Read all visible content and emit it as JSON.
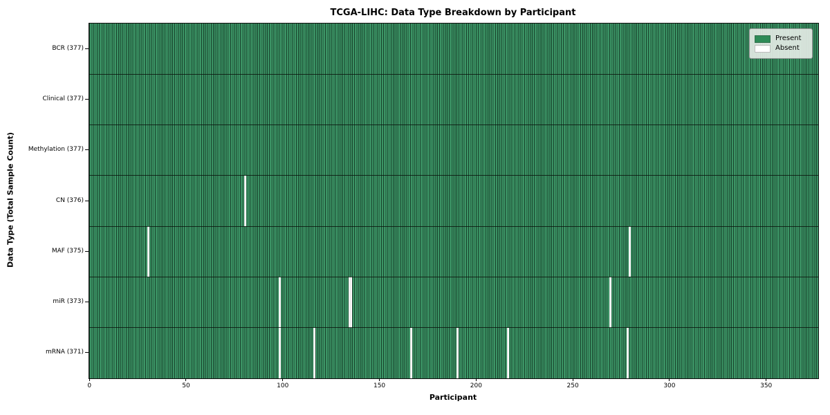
{
  "chart_data": {
    "type": "heatmap",
    "title": "TCGA-LIHC: Data Type Breakdown by Participant",
    "xlabel": "Participant",
    "ylabel": "Data Type (Total Sample Count)",
    "x_ticks": [
      0,
      50,
      100,
      150,
      200,
      250,
      300,
      350
    ],
    "x_max": 377,
    "n_participants": 377,
    "grid": "cell-edges",
    "legend_position": "upper-right",
    "rows": [
      {
        "label": "BCR (377)",
        "data_type": "BCR",
        "total": 377,
        "absent_participants": []
      },
      {
        "label": "Clinical (377)",
        "data_type": "Clinical",
        "total": 377,
        "absent_participants": []
      },
      {
        "label": "Methylation (377)",
        "data_type": "Methylation",
        "total": 377,
        "absent_participants": []
      },
      {
        "label": "CN (376)",
        "data_type": "CN",
        "total": 376,
        "absent_participants": [
          80
        ]
      },
      {
        "label": "MAF (375)",
        "data_type": "MAF",
        "total": 375,
        "absent_participants": [
          30,
          279
        ]
      },
      {
        "label": "miR (373)",
        "data_type": "miR",
        "total": 373,
        "absent_participants": [
          98,
          134,
          135,
          269
        ]
      },
      {
        "label": "mRNA (371)",
        "data_type": "mRNA",
        "total": 371,
        "absent_participants": [
          98,
          116,
          166,
          190,
          216,
          278
        ]
      }
    ],
    "legend": [
      {
        "label": "Present",
        "color": "#2e8b57"
      },
      {
        "label": "Absent",
        "color": "#ffffff"
      }
    ],
    "colors": {
      "present_fill": "#3c9566",
      "cell_edge": "#17402a",
      "absent_fill": "#ffffff",
      "row_separator": "#0a120c",
      "legend_bg": "#edf0ed",
      "axis": "#000000",
      "background": "#ffffff"
    }
  }
}
